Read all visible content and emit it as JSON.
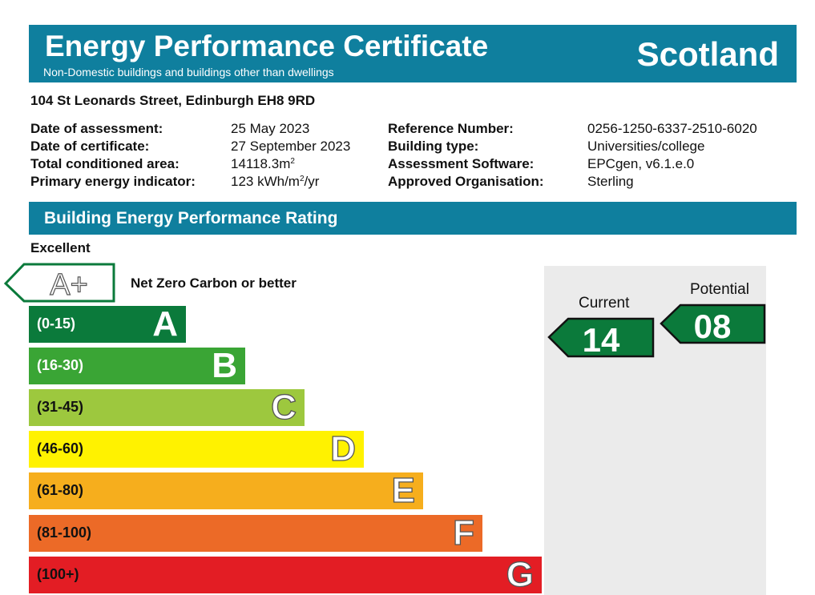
{
  "header": {
    "title": "Energy Performance Certificate",
    "subtitle": "Non-Domestic buildings and buildings other than dwellings",
    "region": "Scotland"
  },
  "address": "104 St Leonards Street, Edinburgh EH8 9RD",
  "details": {
    "date_of_assessment": {
      "label": "Date of assessment:",
      "value": "25 May 2023"
    },
    "date_of_certificate": {
      "label": "Date of certificate:",
      "value": "27 September 2023"
    },
    "total_area": {
      "label": "Total conditioned area:",
      "value": "14118.3m",
      "sup": "2"
    },
    "primary_energy": {
      "label": "Primary energy indicator:",
      "value_pre": "123 kWh/m",
      "sup": "2",
      "value_post": "/yr"
    },
    "reference_number": {
      "label": "Reference Number:",
      "value": "0256-1250-6337-2510-6020"
    },
    "building_type": {
      "label": "Building type:",
      "value": "Universities/college"
    },
    "software": {
      "label": "Assessment Software:",
      "value": "EPCgen, v6.1.e.0"
    },
    "organisation": {
      "label": "Approved Organisation:",
      "value": "Sterling"
    }
  },
  "rating_section": {
    "title": "Building Energy Performance Rating",
    "top_label": "Excellent",
    "aplus": {
      "letter": "A+",
      "text": "Net Zero Carbon or better"
    },
    "bands": [
      {
        "range": "(0-15)",
        "letter": "A",
        "color": "#0b7a3b",
        "range_color": "#ffffff",
        "letter_style": "solid"
      },
      {
        "range": "(16-30)",
        "letter": "B",
        "color": "#3aa535",
        "range_color": "#ffffff",
        "letter_style": "solid"
      },
      {
        "range": "(31-45)",
        "letter": "C",
        "color": "#9dc83e",
        "range_color": "#111111",
        "letter_style": "outline"
      },
      {
        "range": "(46-60)",
        "letter": "D",
        "color": "#fff200",
        "range_color": "#111111",
        "letter_style": "outline"
      },
      {
        "range": "(61-80)",
        "letter": "E",
        "color": "#f6ae1d",
        "range_color": "#111111",
        "letter_style": "outline"
      },
      {
        "range": "(81-100)",
        "letter": "F",
        "color": "#ec6a27",
        "range_color": "#111111",
        "letter_style": "outline"
      },
      {
        "range": "(100+)",
        "letter": "G",
        "color": "#e31d24",
        "range_color": "#111111",
        "letter_style": "outline"
      }
    ]
  },
  "ratings": {
    "current": {
      "label": "Current",
      "value": "14",
      "color": "#0b7a3b"
    },
    "potential": {
      "label": "Potential",
      "value": "08",
      "color": "#0b7a3b"
    }
  }
}
